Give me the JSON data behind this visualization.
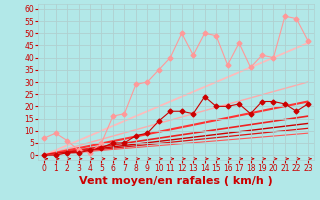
{
  "xlabel": "Vent moyen/en rafales ( km/h )",
  "background_color": "#b2e8e8",
  "grid_color": "#b0d0d0",
  "xlim": [
    -0.5,
    23.5
  ],
  "ylim": [
    -2,
    62
  ],
  "xticks": [
    0,
    1,
    2,
    3,
    4,
    5,
    6,
    7,
    8,
    9,
    10,
    11,
    12,
    13,
    14,
    15,
    16,
    17,
    18,
    19,
    20,
    21,
    22,
    23
  ],
  "yticks": [
    0,
    5,
    10,
    15,
    20,
    25,
    30,
    35,
    40,
    45,
    50,
    55,
    60
  ],
  "series": [
    {
      "name": "rafales_light",
      "x": [
        0,
        1,
        2,
        3,
        4,
        5,
        6,
        7,
        8,
        9,
        10,
        11,
        12,
        13,
        14,
        15,
        16,
        17,
        18,
        19,
        20,
        21,
        22,
        23
      ],
      "y": [
        7,
        9,
        6,
        2,
        1,
        5,
        16,
        17,
        29,
        30,
        35,
        40,
        50,
        41,
        50,
        49,
        37,
        46,
        36,
        41,
        40,
        57,
        56,
        47
      ],
      "color": "#ff9999",
      "lw": 0.8,
      "marker": "D",
      "markersize": 2.5,
      "zorder": 2
    },
    {
      "name": "vent_dark",
      "x": [
        0,
        1,
        2,
        3,
        4,
        5,
        6,
        7,
        8,
        9,
        10,
        11,
        12,
        13,
        14,
        15,
        16,
        17,
        18,
        19,
        20,
        21,
        22,
        23
      ],
      "y": [
        0,
        0,
        1,
        1,
        2,
        3,
        5,
        5,
        8,
        9,
        14,
        18,
        18,
        17,
        24,
        20,
        20,
        21,
        17,
        22,
        22,
        21,
        18,
        21
      ],
      "color": "#cc0000",
      "lw": 0.8,
      "marker": "D",
      "markersize": 2.5,
      "zorder": 3
    },
    {
      "name": "trend_light_high",
      "x": [
        0,
        23
      ],
      "y": [
        0,
        46
      ],
      "color": "#ffbbbb",
      "lw": 1.3,
      "marker": null,
      "zorder": 1
    },
    {
      "name": "trend_light_mid",
      "x": [
        0,
        23
      ],
      "y": [
        0,
        30
      ],
      "color": "#ffaaaa",
      "lw": 1.0,
      "marker": null,
      "zorder": 1
    },
    {
      "name": "trend_red1",
      "x": [
        0,
        23
      ],
      "y": [
        0,
        22
      ],
      "color": "#ff3333",
      "lw": 1.5,
      "marker": null,
      "zorder": 1
    },
    {
      "name": "trend_red2",
      "x": [
        0,
        23
      ],
      "y": [
        0,
        16
      ],
      "color": "#ee2222",
      "lw": 1.2,
      "marker": null,
      "zorder": 1
    },
    {
      "name": "trend_red3",
      "x": [
        0,
        23
      ],
      "y": [
        0,
        13
      ],
      "color": "#cc0000",
      "lw": 1.0,
      "marker": null,
      "zorder": 1
    },
    {
      "name": "trend_red4",
      "x": [
        0,
        23
      ],
      "y": [
        0,
        11
      ],
      "color": "#dd1111",
      "lw": 0.9,
      "marker": null,
      "zorder": 1
    },
    {
      "name": "trend_red5",
      "x": [
        0,
        23
      ],
      "y": [
        0,
        9
      ],
      "color": "#ff5555",
      "lw": 0.8,
      "marker": null,
      "zorder": 1
    }
  ],
  "xlabel_color": "#cc0000",
  "xlabel_fontsize": 8,
  "tick_fontsize": 5.5,
  "tick_color": "#cc0000",
  "arrow_color": "#cc0000"
}
